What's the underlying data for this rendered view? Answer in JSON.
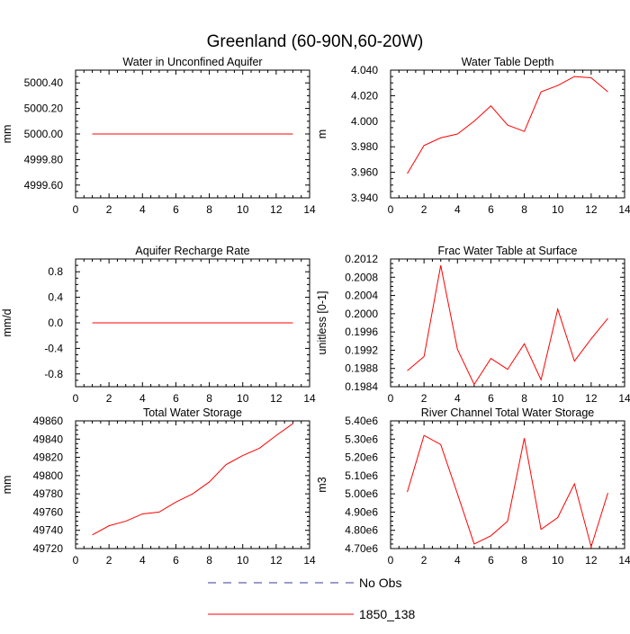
{
  "title": "Greenland (60-90N,60-20W)",
  "colors": {
    "model_line": "#ff0000",
    "obs_line": "#3a3a9a",
    "axis": "#000000"
  },
  "legend": {
    "items": [
      {
        "label": "No Obs",
        "style": "dashed",
        "color": "#3a3a9a"
      },
      {
        "label": "1850_138",
        "style": "solid",
        "color": "#ff0000"
      }
    ]
  },
  "chart_data": [
    {
      "type": "line",
      "title": "Water in Unconfined Aquifer",
      "ylabel": "mm",
      "xlim": [
        0,
        14
      ],
      "ylim": [
        4999.5,
        5000.5
      ],
      "xticks": [
        "0",
        "2",
        "4",
        "6",
        "8",
        "10",
        "12",
        "14"
      ],
      "yticks": [
        "4999.60",
        "4999.80",
        "5000.00",
        "5000.20",
        "5000.40"
      ],
      "series": [
        {
          "name": "1850_138",
          "x": [
            1,
            2,
            3,
            4,
            5,
            6,
            7,
            8,
            9,
            10,
            11,
            12,
            13
          ],
          "values": [
            5000,
            5000,
            5000,
            5000,
            5000,
            5000,
            5000,
            5000,
            5000,
            5000,
            5000,
            5000,
            5000
          ]
        }
      ]
    },
    {
      "type": "line",
      "title": "Water Table Depth",
      "ylabel": "m",
      "xlim": [
        0,
        14
      ],
      "ylim": [
        3.94,
        4.04
      ],
      "xticks": [
        "0",
        "2",
        "4",
        "6",
        "8",
        "10",
        "12",
        "14"
      ],
      "yticks": [
        "3.940",
        "3.960",
        "3.980",
        "4.000",
        "4.020",
        "4.040"
      ],
      "series": [
        {
          "name": "1850_138",
          "x": [
            1,
            2,
            3,
            4,
            5,
            6,
            7,
            8,
            9,
            10,
            11,
            12,
            13
          ],
          "values": [
            3.959,
            3.981,
            3.987,
            3.99,
            4.0,
            4.012,
            3.997,
            3.992,
            4.023,
            4.028,
            4.035,
            4.034,
            4.023
          ]
        }
      ]
    },
    {
      "type": "line",
      "title": "Aquifer Recharge Rate",
      "ylabel": "mm/d",
      "xlim": [
        0,
        14
      ],
      "ylim": [
        -1.0,
        1.0
      ],
      "xticks": [
        "0",
        "2",
        "4",
        "6",
        "8",
        "10",
        "12",
        "14"
      ],
      "yticks": [
        "-0.8",
        "-0.4",
        "0.0",
        "0.4",
        "0.8"
      ],
      "series": [
        {
          "name": "1850_138",
          "x": [
            1,
            2,
            3,
            4,
            5,
            6,
            7,
            8,
            9,
            10,
            11,
            12,
            13
          ],
          "values": [
            0,
            0,
            0,
            0,
            0,
            0,
            0,
            0,
            0,
            0,
            0,
            0,
            0
          ]
        }
      ]
    },
    {
      "type": "line",
      "title": "Frac Water Table at Surface",
      "ylabel": "unitless [0-1]",
      "xlim": [
        0,
        14
      ],
      "ylim": [
        0.1984,
        0.2012
      ],
      "xticks": [
        "0",
        "2",
        "4",
        "6",
        "8",
        "10",
        "12",
        "14"
      ],
      "yticks": [
        "0.1984",
        "0.1988",
        "0.1992",
        "0.1996",
        "0.2000",
        "0.2004",
        "0.2008",
        "0.2012"
      ],
      "series": [
        {
          "name": "1850_138",
          "x": [
            1,
            2,
            3,
            4,
            5,
            6,
            7,
            8,
            9,
            10,
            11,
            12,
            13
          ],
          "values": [
            0.19875,
            0.19906,
            0.20106,
            0.19922,
            0.19845,
            0.19902,
            0.19878,
            0.19934,
            0.19855,
            0.2001,
            0.19896,
            0.19945,
            0.1999
          ]
        }
      ]
    },
    {
      "type": "line",
      "title": "Total Water Storage",
      "ylabel": "mm",
      "xlim": [
        0,
        14
      ],
      "ylim": [
        49720,
        49860
      ],
      "xticks": [
        "0",
        "2",
        "4",
        "6",
        "8",
        "10",
        "12",
        "14"
      ],
      "yticks": [
        "49720",
        "49740",
        "49760",
        "49780",
        "49800",
        "49820",
        "49840",
        "49860"
      ],
      "series": [
        {
          "name": "1850_138",
          "x": [
            1,
            2,
            3,
            4,
            5,
            6,
            7,
            8,
            9,
            10,
            11,
            12,
            13
          ],
          "values": [
            49735,
            49745,
            49750,
            49758,
            49760,
            49771,
            49780,
            49793,
            49812,
            49822,
            49830,
            49844,
            49857
          ]
        }
      ]
    },
    {
      "type": "line",
      "title": "River Channel Total Water Storage",
      "ylabel": "m3",
      "xlim": [
        0,
        14
      ],
      "ylim": [
        4700000,
        5400000
      ],
      "xticks": [
        "0",
        "2",
        "4",
        "6",
        "8",
        "10",
        "12",
        "14"
      ],
      "yticks": [
        "4.70e6",
        "4.80e6",
        "4.90e6",
        "5.00e6",
        "5.10e6",
        "5.20e6",
        "5.30e6",
        "5.40e6"
      ],
      "series": [
        {
          "name": "1850_138",
          "x": [
            1,
            2,
            3,
            4,
            5,
            6,
            7,
            8,
            9,
            10,
            11,
            12,
            13
          ],
          "values": [
            5010000,
            5320000,
            5270000,
            5000000,
            4725000,
            4770000,
            4850000,
            5305000,
            4805000,
            4870000,
            5055000,
            4710000,
            5005000
          ]
        }
      ]
    }
  ]
}
